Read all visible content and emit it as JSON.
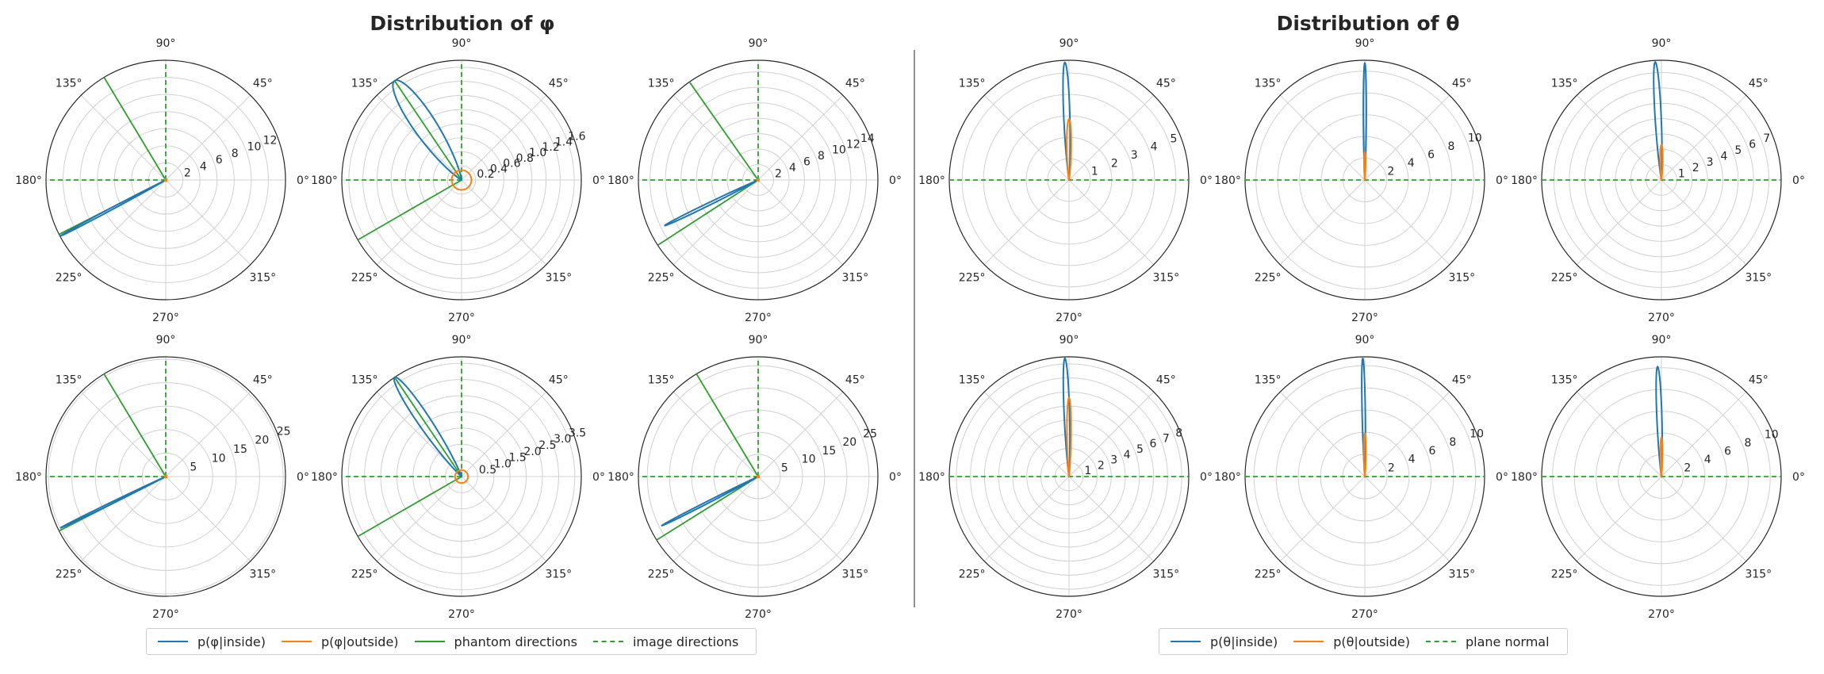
{
  "titles": {
    "phi": "Distribution of φ",
    "theta": "Distribution of θ"
  },
  "colors": {
    "inside": "#1f77b4",
    "outside": "#ff7f0e",
    "phantom": "#2ca02c",
    "image": "#2ca02c",
    "grid": "#d0d0d0",
    "spine": "#262626",
    "divider": "#555555"
  },
  "angle_labels": [
    "0°",
    "45°",
    "90°",
    "135°",
    "180°",
    "225°",
    "270°",
    "315°"
  ],
  "legend_phi": [
    {
      "label": "p(φ|inside)",
      "color": "#1f77b4",
      "style": "solid",
      "icon": "legend-line-blue"
    },
    {
      "label": "p(φ|outside)",
      "color": "#ff7f0e",
      "style": "solid",
      "icon": "legend-line-orange"
    },
    {
      "label": "phantom directions",
      "color": "#2ca02c",
      "style": "solid",
      "icon": "legend-line-green"
    },
    {
      "label": "image directions",
      "color": "#2ca02c",
      "style": "dashed",
      "icon": "legend-line-green-dashed"
    }
  ],
  "legend_theta": [
    {
      "label": "p(θ|inside)",
      "color": "#1f77b4",
      "style": "solid",
      "icon": "legend-line-blue"
    },
    {
      "label": "p(θ|outside)",
      "color": "#ff7f0e",
      "style": "solid",
      "icon": "legend-line-orange"
    },
    {
      "label": "plane normal",
      "color": "#2ca02c",
      "style": "dashed",
      "icon": "legend-line-green-dashed"
    }
  ],
  "chart_data": [
    {
      "type": "polar",
      "group": "phi",
      "row": 0,
      "col": 0,
      "rmax": 14,
      "rticks": [
        2,
        4,
        6,
        8,
        10,
        12
      ],
      "series": [
        {
          "name": "p(φ|inside)",
          "peak_deg": 208,
          "peak": 14,
          "width": 0.8
        },
        {
          "name": "p(φ|outside)",
          "peak_deg": 0,
          "peak": 0.1,
          "width": 180
        }
      ],
      "phantom_dirs_deg": [
        121,
        207
      ],
      "image_dirs_deg": [
        90,
        180
      ]
    },
    {
      "type": "polar",
      "group": "phi",
      "row": 0,
      "col": 1,
      "rmax": 1.7,
      "rticks": [
        0.2,
        0.4,
        0.6,
        0.8,
        1.0,
        1.2,
        1.4,
        1.6
      ],
      "rlabels": [
        "0.2",
        "0.4",
        "0.6",
        "0.8",
        "1.0",
        "1.2",
        "1.4",
        "1.6"
      ],
      "series": [
        {
          "name": "p(φ|inside)",
          "peak_deg": 124,
          "peak": 1.7,
          "width": 9
        },
        {
          "name": "p(φ|outside)",
          "peak_deg": 0,
          "peak": 0.14,
          "width": 180
        }
      ],
      "phantom_dirs_deg": [
        124,
        210
      ],
      "image_dirs_deg": [
        90,
        180
      ]
    },
    {
      "type": "polar",
      "group": "phi",
      "row": 0,
      "col": 2,
      "rmax": 15.5,
      "rticks": [
        2,
        4,
        6,
        8,
        10,
        12,
        14
      ],
      "series": [
        {
          "name": "p(φ|inside)",
          "peak_deg": 206,
          "peak": 13.5,
          "width": 1.2
        },
        {
          "name": "p(φ|outside)",
          "peak_deg": 0,
          "peak": 0.1,
          "width": 180
        }
      ],
      "phantom_dirs_deg": [
        125,
        213
      ],
      "image_dirs_deg": [
        90,
        180
      ]
    },
    {
      "type": "polar",
      "group": "phi",
      "row": 1,
      "col": 0,
      "rmax": 25.5,
      "rticks": [
        5,
        10,
        15,
        20,
        25
      ],
      "series": [
        {
          "name": "p(φ|inside)",
          "peak_deg": 206,
          "peak": 25,
          "width": 0.7
        },
        {
          "name": "p(φ|outside)",
          "peak_deg": 0,
          "peak": 0.2,
          "width": 180
        }
      ],
      "phantom_dirs_deg": [
        121,
        207
      ],
      "image_dirs_deg": [
        90,
        180
      ]
    },
    {
      "type": "polar",
      "group": "phi",
      "row": 1,
      "col": 1,
      "rmax": 3.7,
      "rticks": [
        0.5,
        1.0,
        1.5,
        2.0,
        2.5,
        3.0,
        3.5
      ],
      "rlabels": [
        "0.5",
        "1.0",
        "1.5",
        "2.0",
        "2.5",
        "3.0",
        "3.5"
      ],
      "series": [
        {
          "name": "p(φ|inside)",
          "peak_deg": 124,
          "peak": 3.7,
          "width": 5
        },
        {
          "name": "p(φ|outside)",
          "peak_deg": 0,
          "peak": 0.2,
          "width": 180
        }
      ],
      "phantom_dirs_deg": [
        124,
        210
      ],
      "image_dirs_deg": [
        90,
        180
      ]
    },
    {
      "type": "polar",
      "group": "phi",
      "row": 1,
      "col": 2,
      "rmax": 27,
      "rticks": [
        5,
        10,
        15,
        20,
        25
      ],
      "series": [
        {
          "name": "p(φ|inside)",
          "peak_deg": 207,
          "peak": 24.5,
          "width": 0.9
        },
        {
          "name": "p(φ|outside)",
          "peak_deg": 0,
          "peak": 0.2,
          "width": 180
        }
      ],
      "phantom_dirs_deg": [
        121,
        212
      ],
      "image_dirs_deg": [
        90,
        180
      ]
    },
    {
      "type": "polar",
      "group": "theta",
      "row": 0,
      "col": 0,
      "rmax": 5.6,
      "rticks": [
        1,
        2,
        3,
        4,
        5
      ],
      "series": [
        {
          "name": "p(θ|inside)",
          "peak_deg": 92,
          "peak": 5.5,
          "width": 2.5
        },
        {
          "name": "p(θ|outside)",
          "peak_deg": 90,
          "peak": 2.85,
          "width": 3.5
        }
      ],
      "plane_normal_deg": [
        0
      ]
    },
    {
      "type": "polar",
      "group": "theta",
      "row": 0,
      "col": 1,
      "rmax": 11,
      "rticks": [
        2,
        4,
        6,
        8,
        10
      ],
      "series": [
        {
          "name": "p(θ|inside)",
          "peak_deg": 90,
          "peak": 10.8,
          "width": 1.2
        },
        {
          "name": "p(θ|outside)",
          "peak_deg": 90,
          "peak": 2.6,
          "width": 2.5
        }
      ],
      "plane_normal_deg": [
        0
      ]
    },
    {
      "type": "polar",
      "group": "theta",
      "row": 0,
      "col": 2,
      "rmax": 7.8,
      "rticks": [
        1,
        2,
        3,
        4,
        5,
        6,
        7
      ],
      "series": [
        {
          "name": "p(θ|inside)",
          "peak_deg": 93,
          "peak": 7.7,
          "width": 2.5
        },
        {
          "name": "p(θ|outside)",
          "peak_deg": 90,
          "peak": 2.3,
          "width": 3.5
        }
      ],
      "plane_normal_deg": [
        0
      ]
    },
    {
      "type": "polar",
      "group": "theta",
      "row": 1,
      "col": 0,
      "rmax": 8.5,
      "rticks": [
        1,
        2,
        3,
        4,
        5,
        6,
        7,
        8
      ],
      "series": [
        {
          "name": "p(θ|inside)",
          "peak_deg": 92,
          "peak": 8.4,
          "width": 2.2
        },
        {
          "name": "p(θ|outside)",
          "peak_deg": 90,
          "peak": 5.6,
          "width": 2.5
        }
      ],
      "plane_normal_deg": [
        0
      ]
    },
    {
      "type": "polar",
      "group": "theta",
      "row": 1,
      "col": 1,
      "rmax": 10.8,
      "rticks": [
        2,
        4,
        6,
        8,
        10
      ],
      "series": [
        {
          "name": "p(θ|inside)",
          "peak_deg": 91,
          "peak": 10.7,
          "width": 1.3
        },
        {
          "name": "p(θ|outside)",
          "peak_deg": 90,
          "peak": 3.9,
          "width": 2.5
        }
      ],
      "plane_normal_deg": [
        0
      ]
    },
    {
      "type": "polar",
      "group": "theta",
      "row": 1,
      "col": 2,
      "rmax": 11,
      "rticks": [
        2,
        4,
        6,
        8,
        10
      ],
      "series": [
        {
          "name": "p(θ|inside)",
          "peak_deg": 92,
          "peak": 10.1,
          "width": 2.2
        },
        {
          "name": "p(θ|outside)",
          "peak_deg": 90,
          "peak": 3.6,
          "width": 2.5
        }
      ],
      "plane_normal_deg": [
        0
      ]
    }
  ]
}
